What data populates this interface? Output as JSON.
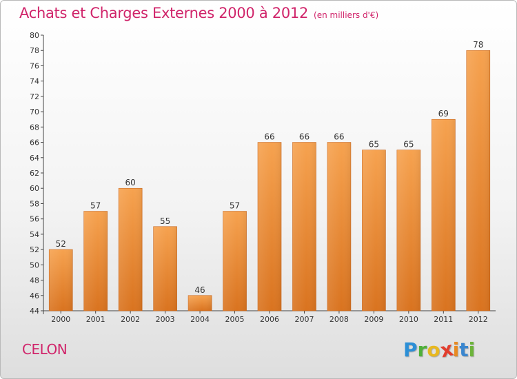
{
  "header": {
    "title": "Achats et Charges Externes 2000 à 2012",
    "unit": "(en milliers d'€)"
  },
  "footer": {
    "commune": "CELON",
    "brand_letters": [
      "P",
      "r",
      "o",
      "x",
      "i",
      "t",
      "i"
    ],
    "brand_colors": [
      "#2c8fd6",
      "#4fb03a",
      "#e8b81f",
      "#e23d2d",
      "#e88a22",
      "#3a86cf",
      "#6cb43a"
    ]
  },
  "chart_data": {
    "type": "bar",
    "title": "Achats et Charges Externes 2000 à 2012",
    "subtitle": "(en milliers d'€)",
    "categories": [
      "2000",
      "2001",
      "2002",
      "2003",
      "2004",
      "2005",
      "2006",
      "2007",
      "2008",
      "2009",
      "2010",
      "2011",
      "2012"
    ],
    "values": [
      52,
      57,
      60,
      55,
      46,
      57,
      66,
      66,
      66,
      65,
      65,
      69,
      78
    ],
    "ylim": [
      44,
      80
    ],
    "yticks": [
      44,
      46,
      48,
      50,
      52,
      54,
      56,
      58,
      60,
      62,
      64,
      66,
      68,
      70,
      72,
      74,
      76,
      78,
      80
    ],
    "grid": false,
    "bar_color_top": "#f6a24f",
    "bar_color_bottom": "#d9731f"
  }
}
